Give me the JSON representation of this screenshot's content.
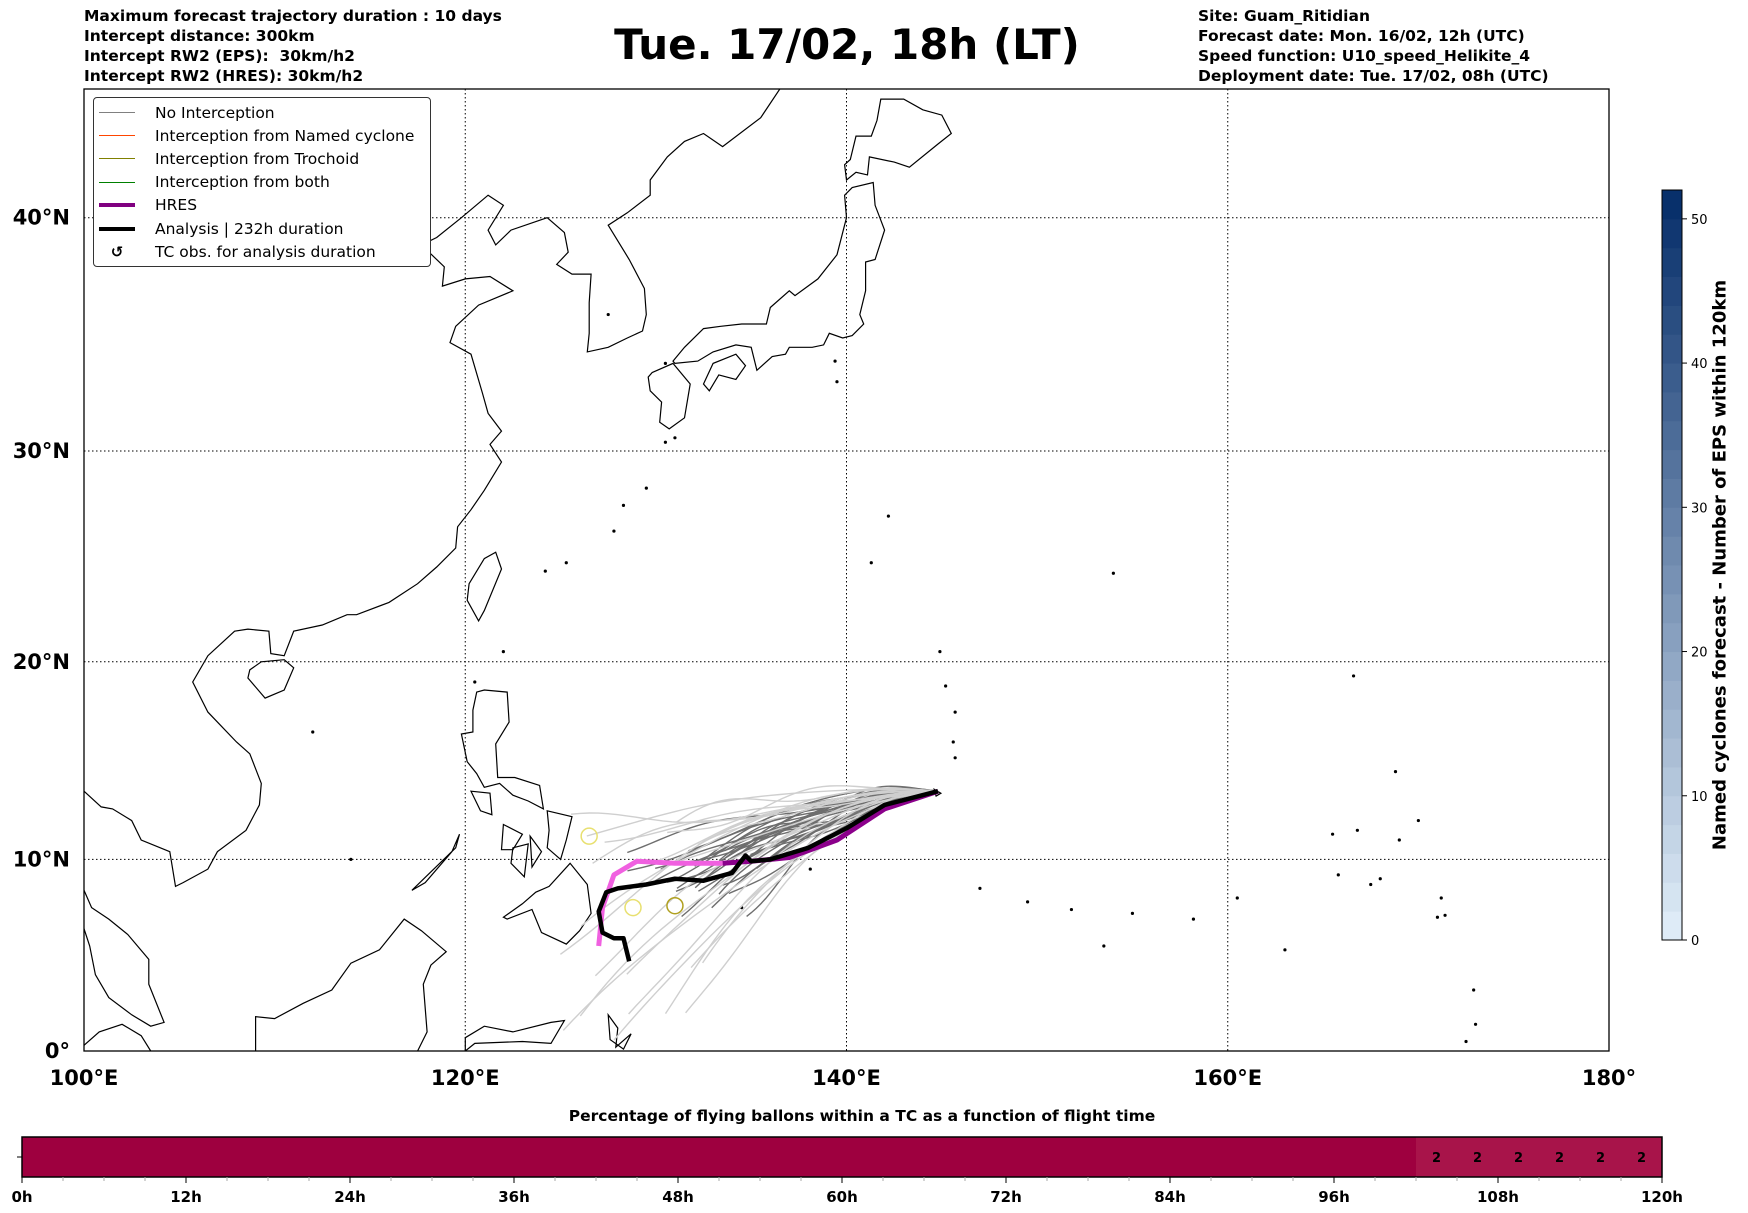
{
  "header": {
    "left": [
      "Maximum forecast trajectory duration : 10 days",
      "Intercept distance: 300km",
      "Intercept RW2 (EPS):  30km/h2",
      "Intercept RW2 (HRES): 30km/h2"
    ],
    "title": "Tue. 17/02, 18h (LT)",
    "right": [
      "Site: Guam_Ritidian",
      "Forecast date: Mon. 16/02, 12h (UTC)",
      "Speed function: U10_speed_Helikite_4",
      "Deployment date: Tue. 17/02, 08h (UTC)"
    ]
  },
  "legend": [
    {
      "label": "No Interception",
      "color": "#808080",
      "style": "thin"
    },
    {
      "label": "Interception from Named cyclone",
      "color": "#ff4500",
      "style": "thin"
    },
    {
      "label": "Interception from Trochoid",
      "color": "#808000",
      "style": "thin"
    },
    {
      "label": "Interception from both",
      "color": "#008000",
      "style": "thin"
    },
    {
      "label": "HRES",
      "color": "#800080",
      "style": "thick"
    },
    {
      "label": "Analysis | 232h duration",
      "color": "#000000",
      "style": "thick"
    },
    {
      "label": "TC obs. for analysis duration",
      "icon": "tc-symbol-icon",
      "glyph": "↺"
    }
  ],
  "chart_data": [
    {
      "type": "line",
      "title": "Tue. 17/02, 18h (LT)",
      "projection": "mercator",
      "xlim": [
        100,
        180
      ],
      "ylim": [
        0,
        44.6
      ],
      "grid": true,
      "x_ticks": [
        100,
        120,
        140,
        160,
        180
      ],
      "x_tick_labels": [
        "100°E",
        "120°E",
        "140°E",
        "160°E",
        "180°"
      ],
      "y_ticks": [
        0,
        10,
        20,
        30,
        40
      ],
      "y_tick_labels": [
        "0°",
        "10°N",
        "20°N",
        "30°N",
        "40°N"
      ],
      "legend_position": "top-left",
      "release_site": {
        "lon": 144.8,
        "lat": 13.5
      },
      "ensemble_members": 50,
      "series": [
        {
          "name": "HRES",
          "lon": [
            144.8,
            142,
            139.5,
            137,
            135,
            133.5,
            131,
            129,
            127.8,
            127.2,
            127
          ],
          "lat": [
            13.5,
            12.6,
            11,
            10.1,
            9.9,
            9.8,
            9.8,
            9.9,
            9.2,
            7.5,
            5.5
          ]
        },
        {
          "name": "Analysis | 232h duration",
          "lon": [
            144.8,
            142,
            140,
            138,
            136,
            135,
            134.7,
            134,
            132.5,
            131,
            129.5,
            128,
            127.4,
            127,
            127.2,
            127.8,
            128.3,
            128.6
          ],
          "lat": [
            13.5,
            12.8,
            11.6,
            10.6,
            10,
            9.9,
            10.2,
            9.3,
            8.9,
            9,
            8.7,
            8.5,
            8.3,
            7.3,
            6.2,
            5.9,
            5.9,
            4.7
          ]
        }
      ]
    },
    {
      "type": "heatmap",
      "title": "Named cyclones forecast - Number of EPS within 120km",
      "colorbar_ticks": [
        0,
        10,
        20,
        30,
        40,
        50
      ],
      "range": [
        0,
        52
      ]
    },
    {
      "type": "heatmap",
      "title": "Percentage of flying ballons within a TC as a function of flight time",
      "x_ticks": [
        "0h",
        "12h",
        "24h",
        "36h",
        "48h",
        "60h",
        "72h",
        "84h",
        "96h",
        "108h",
        "120h"
      ],
      "xlim": [
        0,
        120
      ],
      "bins_hours": 3,
      "segments": [
        {
          "from": 0,
          "to": 102,
          "value": 0,
          "color": "#9e003f"
        },
        {
          "from": 102,
          "to": 120,
          "value": 2,
          "color": "#a8144a"
        }
      ],
      "cell_labels": [
        {
          "hour": 103.5,
          "text": "2"
        },
        {
          "hour": 106.5,
          "text": "2"
        },
        {
          "hour": 109.5,
          "text": "2"
        },
        {
          "hour": 112.5,
          "text": "2"
        },
        {
          "hour": 115.5,
          "text": "2"
        },
        {
          "hour": 118.5,
          "text": "2"
        }
      ]
    }
  ]
}
